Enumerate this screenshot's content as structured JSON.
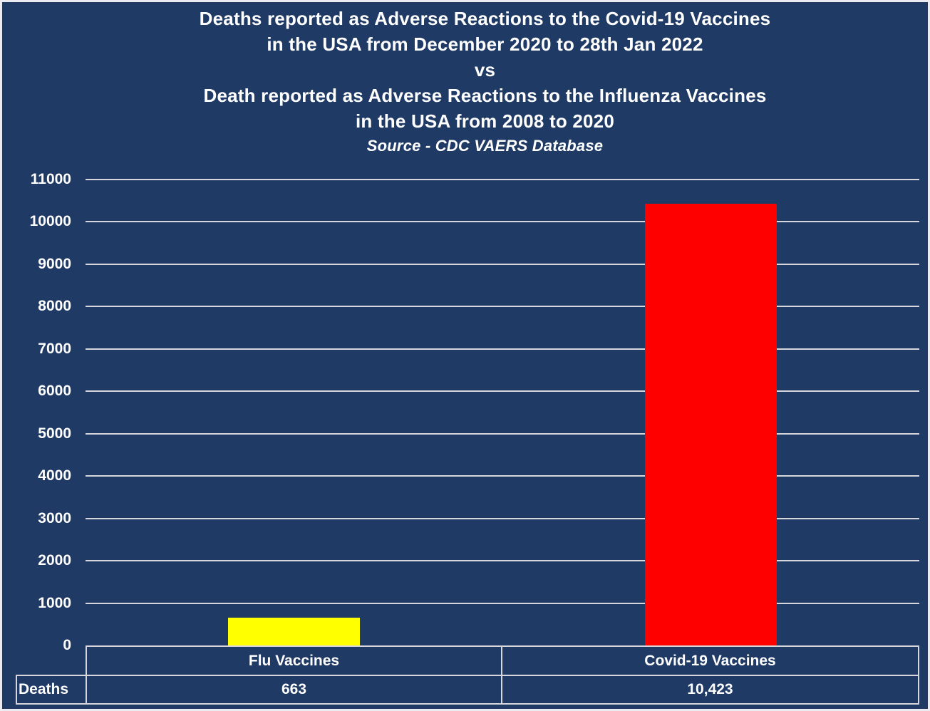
{
  "title": {
    "line1": "Deaths reported as Adverse Reactions to the Covid-19 Vaccines",
    "line2": "in the USA from December 2020 to 28th Jan 2022",
    "vs": "vs",
    "line3": "Death reported as Adverse Reactions to the Influenza Vaccines",
    "line4": "in the USA  from 2008 to 2020",
    "source": "Source - CDC VAERS Database"
  },
  "colors": {
    "background": "#203A66",
    "gridline": "#D6D6DC",
    "table_border": "#D6D6DC",
    "text": "#FFFFFF",
    "flu_bar": "#FFFF00",
    "covid_bar": "#FF0000"
  },
  "chart_data": {
    "type": "bar",
    "title": "Deaths reported as Adverse Reactions to the Covid-19 Vaccines in the USA from December 2020 to 28th Jan 2022 vs Death reported as Adverse Reactions to the Influenza Vaccines in the USA from 2008 to 2020",
    "subtitle": "Source - CDC VAERS Database",
    "categories": [
      "Flu Vaccines",
      "Covid-19 Vaccines"
    ],
    "values": [
      663,
      10423
    ],
    "value_labels": [
      "663",
      "10,423"
    ],
    "series_label": "Deaths",
    "bar_colors": [
      "#FFFF00",
      "#FF0000"
    ],
    "xlabel": "",
    "ylabel": "",
    "ylim": [
      0,
      11000
    ],
    "yticks": [
      0,
      1000,
      2000,
      3000,
      4000,
      5000,
      6000,
      7000,
      8000,
      9000,
      10000,
      11000
    ],
    "grid": true,
    "legend": false
  }
}
